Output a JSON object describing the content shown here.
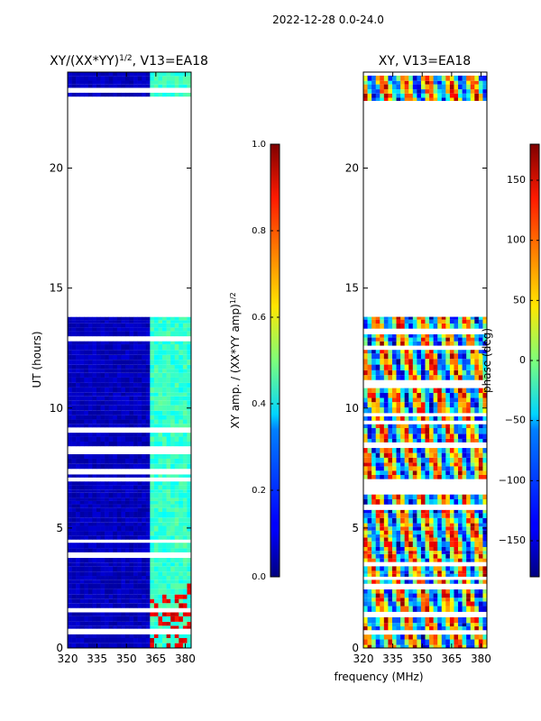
{
  "figure_title": "2022-12-28 0.0-24.0",
  "xlabel_shared": "frequency (MHz)",
  "chart_data": [
    {
      "type": "heatmap",
      "name": "normalized-amplitude",
      "title_main": "XY/(XX*YY)",
      "title_sup": "1/2",
      "title_tail": ", V13=EA18",
      "ylabel": "UT (hours)",
      "xlim": [
        320,
        383
      ],
      "ylim": [
        0,
        24
      ],
      "xticks": [
        320,
        335,
        350,
        365,
        380
      ],
      "yticks": [
        0,
        5,
        10,
        15,
        20
      ],
      "data_hours": [
        [
          0,
          13.8
        ],
        [
          22.8,
          24
        ]
      ],
      "colorbar": {
        "label": "XY amp. / (XX*YY amp)",
        "label_sup": "1/2",
        "range": [
          0.0,
          1.0
        ],
        "ticks": [
          "0.0",
          "0.2",
          "0.4",
          "0.6",
          "0.8",
          "1.0"
        ],
        "colormap": "jet"
      }
    },
    {
      "type": "heatmap",
      "name": "phase",
      "title": "XY, V13=EA18",
      "xlim": [
        320,
        383
      ],
      "ylim": [
        0,
        24
      ],
      "xticks": [
        320,
        335,
        350,
        365,
        380
      ],
      "yticks": [
        0,
        5,
        10,
        15,
        20
      ],
      "data_hours": [
        [
          0,
          13.8
        ],
        [
          22.8,
          24
        ]
      ],
      "colorbar": {
        "label": "phase (deg)",
        "range": [
          -180,
          180
        ],
        "ticks": [
          "-150",
          "-100",
          "-50",
          "0",
          "50",
          "100",
          "150"
        ],
        "colormap": "jet"
      }
    }
  ]
}
